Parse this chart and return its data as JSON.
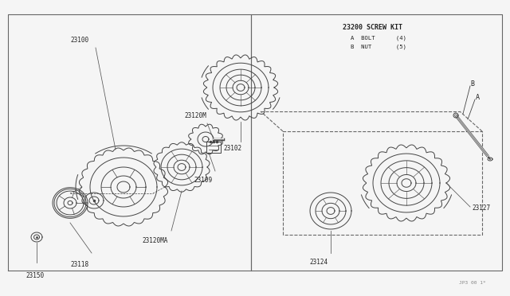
{
  "bg_color": "#f5f5f5",
  "line_color": "#444444",
  "label_color": "#222222",
  "border_color": "#666666",
  "fig_width": 6.4,
  "fig_height": 3.72,
  "dpi": 100,
  "watermark": "JP3 00 1*",
  "screw_kit_label": "23200 SCREW KIT",
  "screw_kit_a": "A  BOLT      (4)",
  "screw_kit_b": "B  NUT       (5)",
  "label_fs": 5.5
}
